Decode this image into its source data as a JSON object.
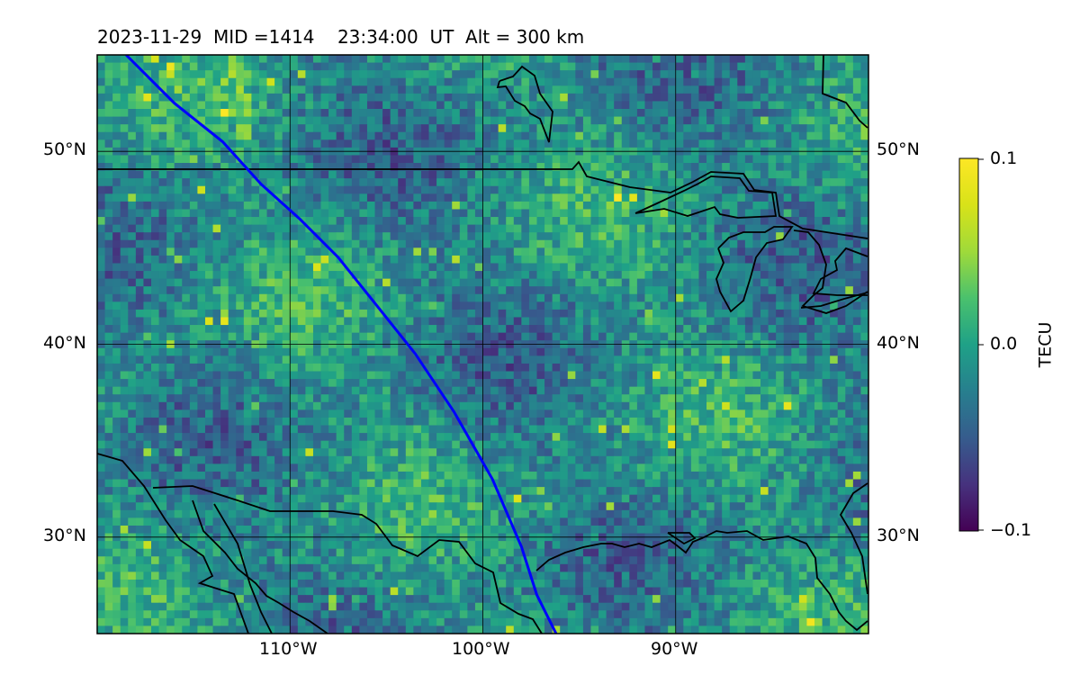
{
  "title": "2023-11-29  MID =1414    23:34:00  UT  Alt = 300 km",
  "map": {
    "lon_range": [
      -120,
      -80
    ],
    "lat_range": [
      25,
      55
    ],
    "lat_ticks": [
      {
        "value": 50,
        "label": "50°N"
      },
      {
        "value": 40,
        "label": "40°N"
      },
      {
        "value": 30,
        "label": "30°N"
      }
    ],
    "lon_ticks": [
      {
        "value": -110,
        "label": "110°W"
      },
      {
        "value": -100,
        "label": "100°W"
      },
      {
        "value": -90,
        "label": "90°W"
      }
    ],
    "colormap": "viridis",
    "satellite_track_color": "#0000ff",
    "coastline_color": "#000000",
    "satellite_track": [
      [
        -118.5,
        55
      ],
      [
        -116,
        52.5
      ],
      [
        -113.5,
        50.5
      ],
      [
        -111.5,
        48.3
      ],
      [
        -109.5,
        46.5
      ],
      [
        -107.5,
        44.5
      ],
      [
        -105.5,
        42
      ],
      [
        -103.5,
        39.5
      ],
      [
        -101.5,
        36.5
      ],
      [
        -99.5,
        33
      ],
      [
        -98,
        29.5
      ],
      [
        -97.2,
        27
      ],
      [
        -96.2,
        25
      ]
    ]
  },
  "colorbar": {
    "label": "TECU",
    "min": -0.1,
    "max": 0.1,
    "ticks": [
      {
        "value": 0.1,
        "label": "0.1"
      },
      {
        "value": 0.0,
        "label": "0.0"
      },
      {
        "value": -0.1,
        "label": "−0.1"
      }
    ]
  }
}
